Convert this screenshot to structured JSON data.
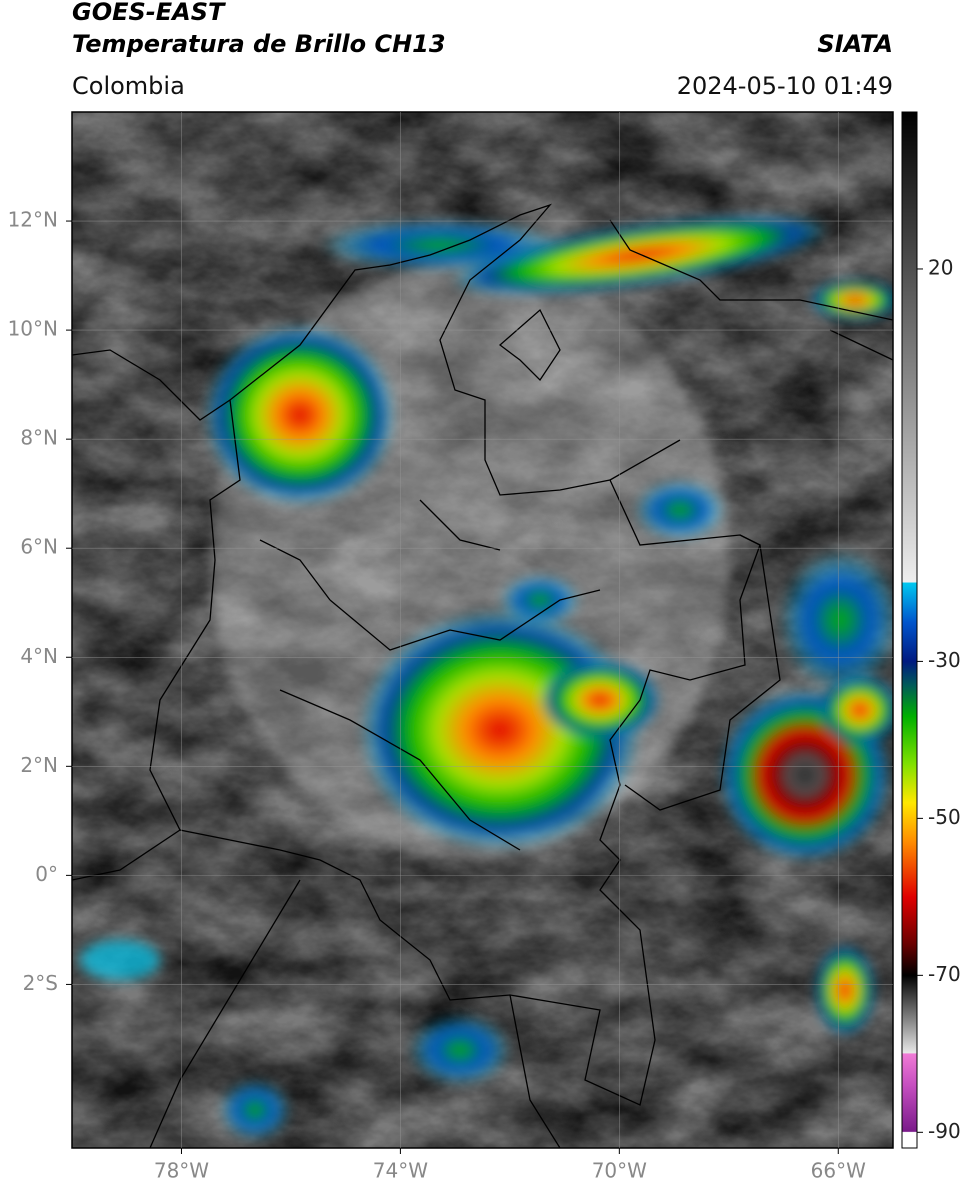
{
  "header": {
    "title": "GOES-EAST",
    "subtitle": "Temperatura de Brillo CH13",
    "source": "SIATA",
    "region": "Colombia",
    "datetime": "2024-05-10 01:49"
  },
  "map": {
    "lonlim": [
      -80,
      -65
    ],
    "latlim": [
      -5,
      14
    ],
    "lon_ticks": [
      {
        "value": -78,
        "label": "78°W"
      },
      {
        "value": -74,
        "label": "74°W"
      },
      {
        "value": -70,
        "label": "70°W"
      },
      {
        "value": -66,
        "label": "66°W"
      }
    ],
    "lat_ticks": [
      {
        "value": -2,
        "label": "2°S"
      },
      {
        "value": 0,
        "label": "0°"
      },
      {
        "value": 2,
        "label": "2°N"
      },
      {
        "value": 4,
        "label": "4°N"
      },
      {
        "value": 6,
        "label": "6°N"
      },
      {
        "value": 8,
        "label": "8°N"
      },
      {
        "value": 10,
        "label": "10°N"
      },
      {
        "value": 12,
        "label": "12°N"
      }
    ],
    "grid": true
  },
  "colorbar": {
    "lim": [
      -92,
      40
    ],
    "ticks": [
      20,
      -30,
      -50,
      -70,
      -90
    ],
    "stops": [
      {
        "value": -92,
        "color": "#ffffff"
      },
      {
        "value": -90,
        "color": "#ffffff"
      },
      {
        "value": -89.9,
        "color": "#7a1a8a"
      },
      {
        "value": -84,
        "color": "#c64fc0"
      },
      {
        "value": -80,
        "color": "#f07bd6"
      },
      {
        "value": -79.9,
        "color": "#e8e8e8"
      },
      {
        "value": -72,
        "color": "#303030"
      },
      {
        "value": -70,
        "color": "#000000"
      },
      {
        "value": -66,
        "color": "#6a0000"
      },
      {
        "value": -60,
        "color": "#e00000"
      },
      {
        "value": -53,
        "color": "#ff8c00"
      },
      {
        "value": -48,
        "color": "#ffe800"
      },
      {
        "value": -43,
        "color": "#7fe000"
      },
      {
        "value": -37,
        "color": "#00b000"
      },
      {
        "value": -33,
        "color": "#005a5a"
      },
      {
        "value": -30,
        "color": "#001a80"
      },
      {
        "value": -25,
        "color": "#0055cc"
      },
      {
        "value": -20,
        "color": "#00c8f0"
      },
      {
        "value": -19.9,
        "color": "#eeeeee"
      },
      {
        "value": 40,
        "color": "#000000"
      }
    ]
  }
}
